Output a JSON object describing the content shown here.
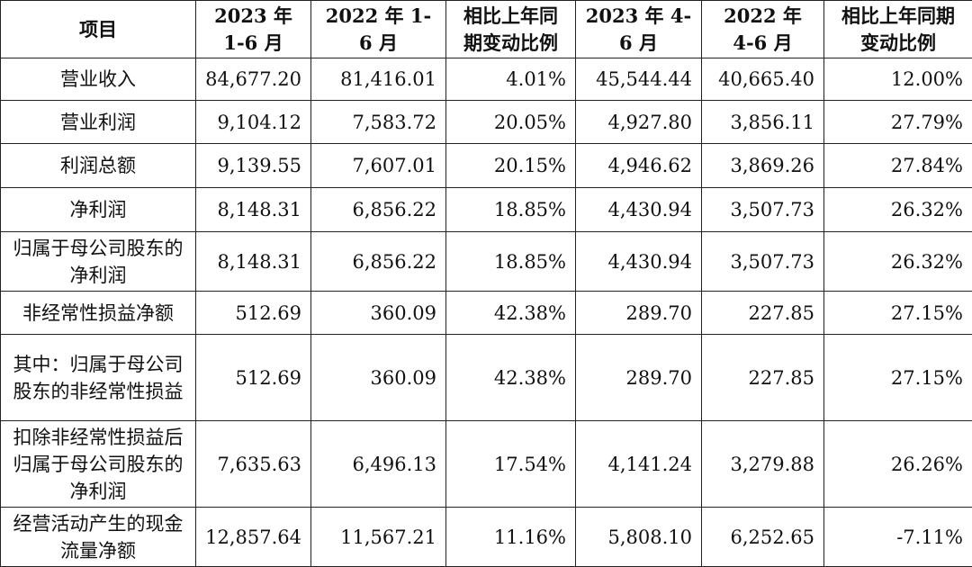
{
  "headers": [
    "项目",
    "2023 年 1-6 月",
    "2022 年 1-6 月",
    "相比上年同期变动比例",
    "2023 年 4-6 月",
    "2022 年 4-6 月",
    "相比上年同期变动比例"
  ],
  "rows": [
    {
      "label": "营业收入",
      "values": [
        "84,677.20",
        "81,416.01",
        "4.01%",
        "45,544.44",
        "40,665.40",
        "12.00%"
      ]
    },
    {
      "label": "营业利润",
      "values": [
        "9,104.12",
        "7,583.72",
        "20.05%",
        "4,927.80",
        "3,856.11",
        "27.79%"
      ]
    },
    {
      "label": "利润总额",
      "values": [
        "9,139.55",
        "7,607.01",
        "20.15%",
        "4,946.62",
        "3,869.26",
        "27.84%"
      ]
    },
    {
      "label": "净利润",
      "values": [
        "8,148.31",
        "6,856.22",
        "18.85%",
        "4,430.94",
        "3,507.73",
        "26.32%"
      ]
    },
    {
      "label": "归属于母公司股东的净利润",
      "values": [
        "8,148.31",
        "6,856.22",
        "18.85%",
        "4,430.94",
        "3,507.73",
        "26.32%"
      ]
    },
    {
      "label": "非经常性损益净额",
      "values": [
        "512.69",
        "360.09",
        "42.38%",
        "289.70",
        "227.85",
        "27.15%"
      ]
    },
    {
      "label": "其中：归属于母公司股东的非经常性损益",
      "values": [
        "512.69",
        "360.09",
        "42.38%",
        "289.70",
        "227.85",
        "27.15%"
      ]
    },
    {
      "label": "扣除非经常性损益后归属于母公司股东的净利润",
      "values": [
        "7,635.63",
        "6,496.13",
        "17.54%",
        "4,141.24",
        "3,279.88",
        "26.26%"
      ]
    },
    {
      "label": "经营活动产生的现金流量净额",
      "values": [
        "12,857.64",
        "11,567.21",
        "11.16%",
        "5,808.10",
        "6,252.65",
        "-7.11%"
      ]
    }
  ]
}
